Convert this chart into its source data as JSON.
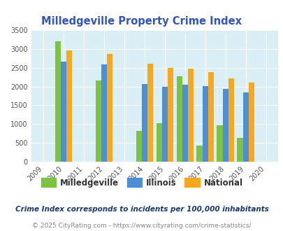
{
  "title": "Milledgeville Property Crime Index",
  "years": [
    2009,
    2010,
    2011,
    2012,
    2013,
    2014,
    2015,
    2016,
    2017,
    2018,
    2019,
    2020
  ],
  "milledgeville": [
    null,
    3200,
    null,
    2150,
    null,
    820,
    1020,
    2270,
    420,
    970,
    640,
    null
  ],
  "illinois": [
    null,
    2670,
    null,
    2590,
    null,
    2070,
    1990,
    2040,
    2010,
    1940,
    1840,
    null
  ],
  "national": [
    null,
    2960,
    null,
    2860,
    null,
    2600,
    2500,
    2480,
    2380,
    2210,
    2110,
    null
  ],
  "ylim": [
    0,
    3500
  ],
  "yticks": [
    0,
    500,
    1000,
    1500,
    2000,
    2500,
    3000,
    3500
  ],
  "color_milledgeville": "#7dc242",
  "color_illinois": "#4d8fd6",
  "color_national": "#f5a820",
  "bg_color": "#daeef5",
  "title_color": "#3355bb",
  "footnote1_color": "#1a3a6e",
  "footnote2_color": "#888888",
  "footnote1": "Crime Index corresponds to incidents per 100,000 inhabitants",
  "footnote2": "© 2025 CityRating.com - https://www.cityrating.com/crime-statistics/",
  "bar_width": 0.28
}
